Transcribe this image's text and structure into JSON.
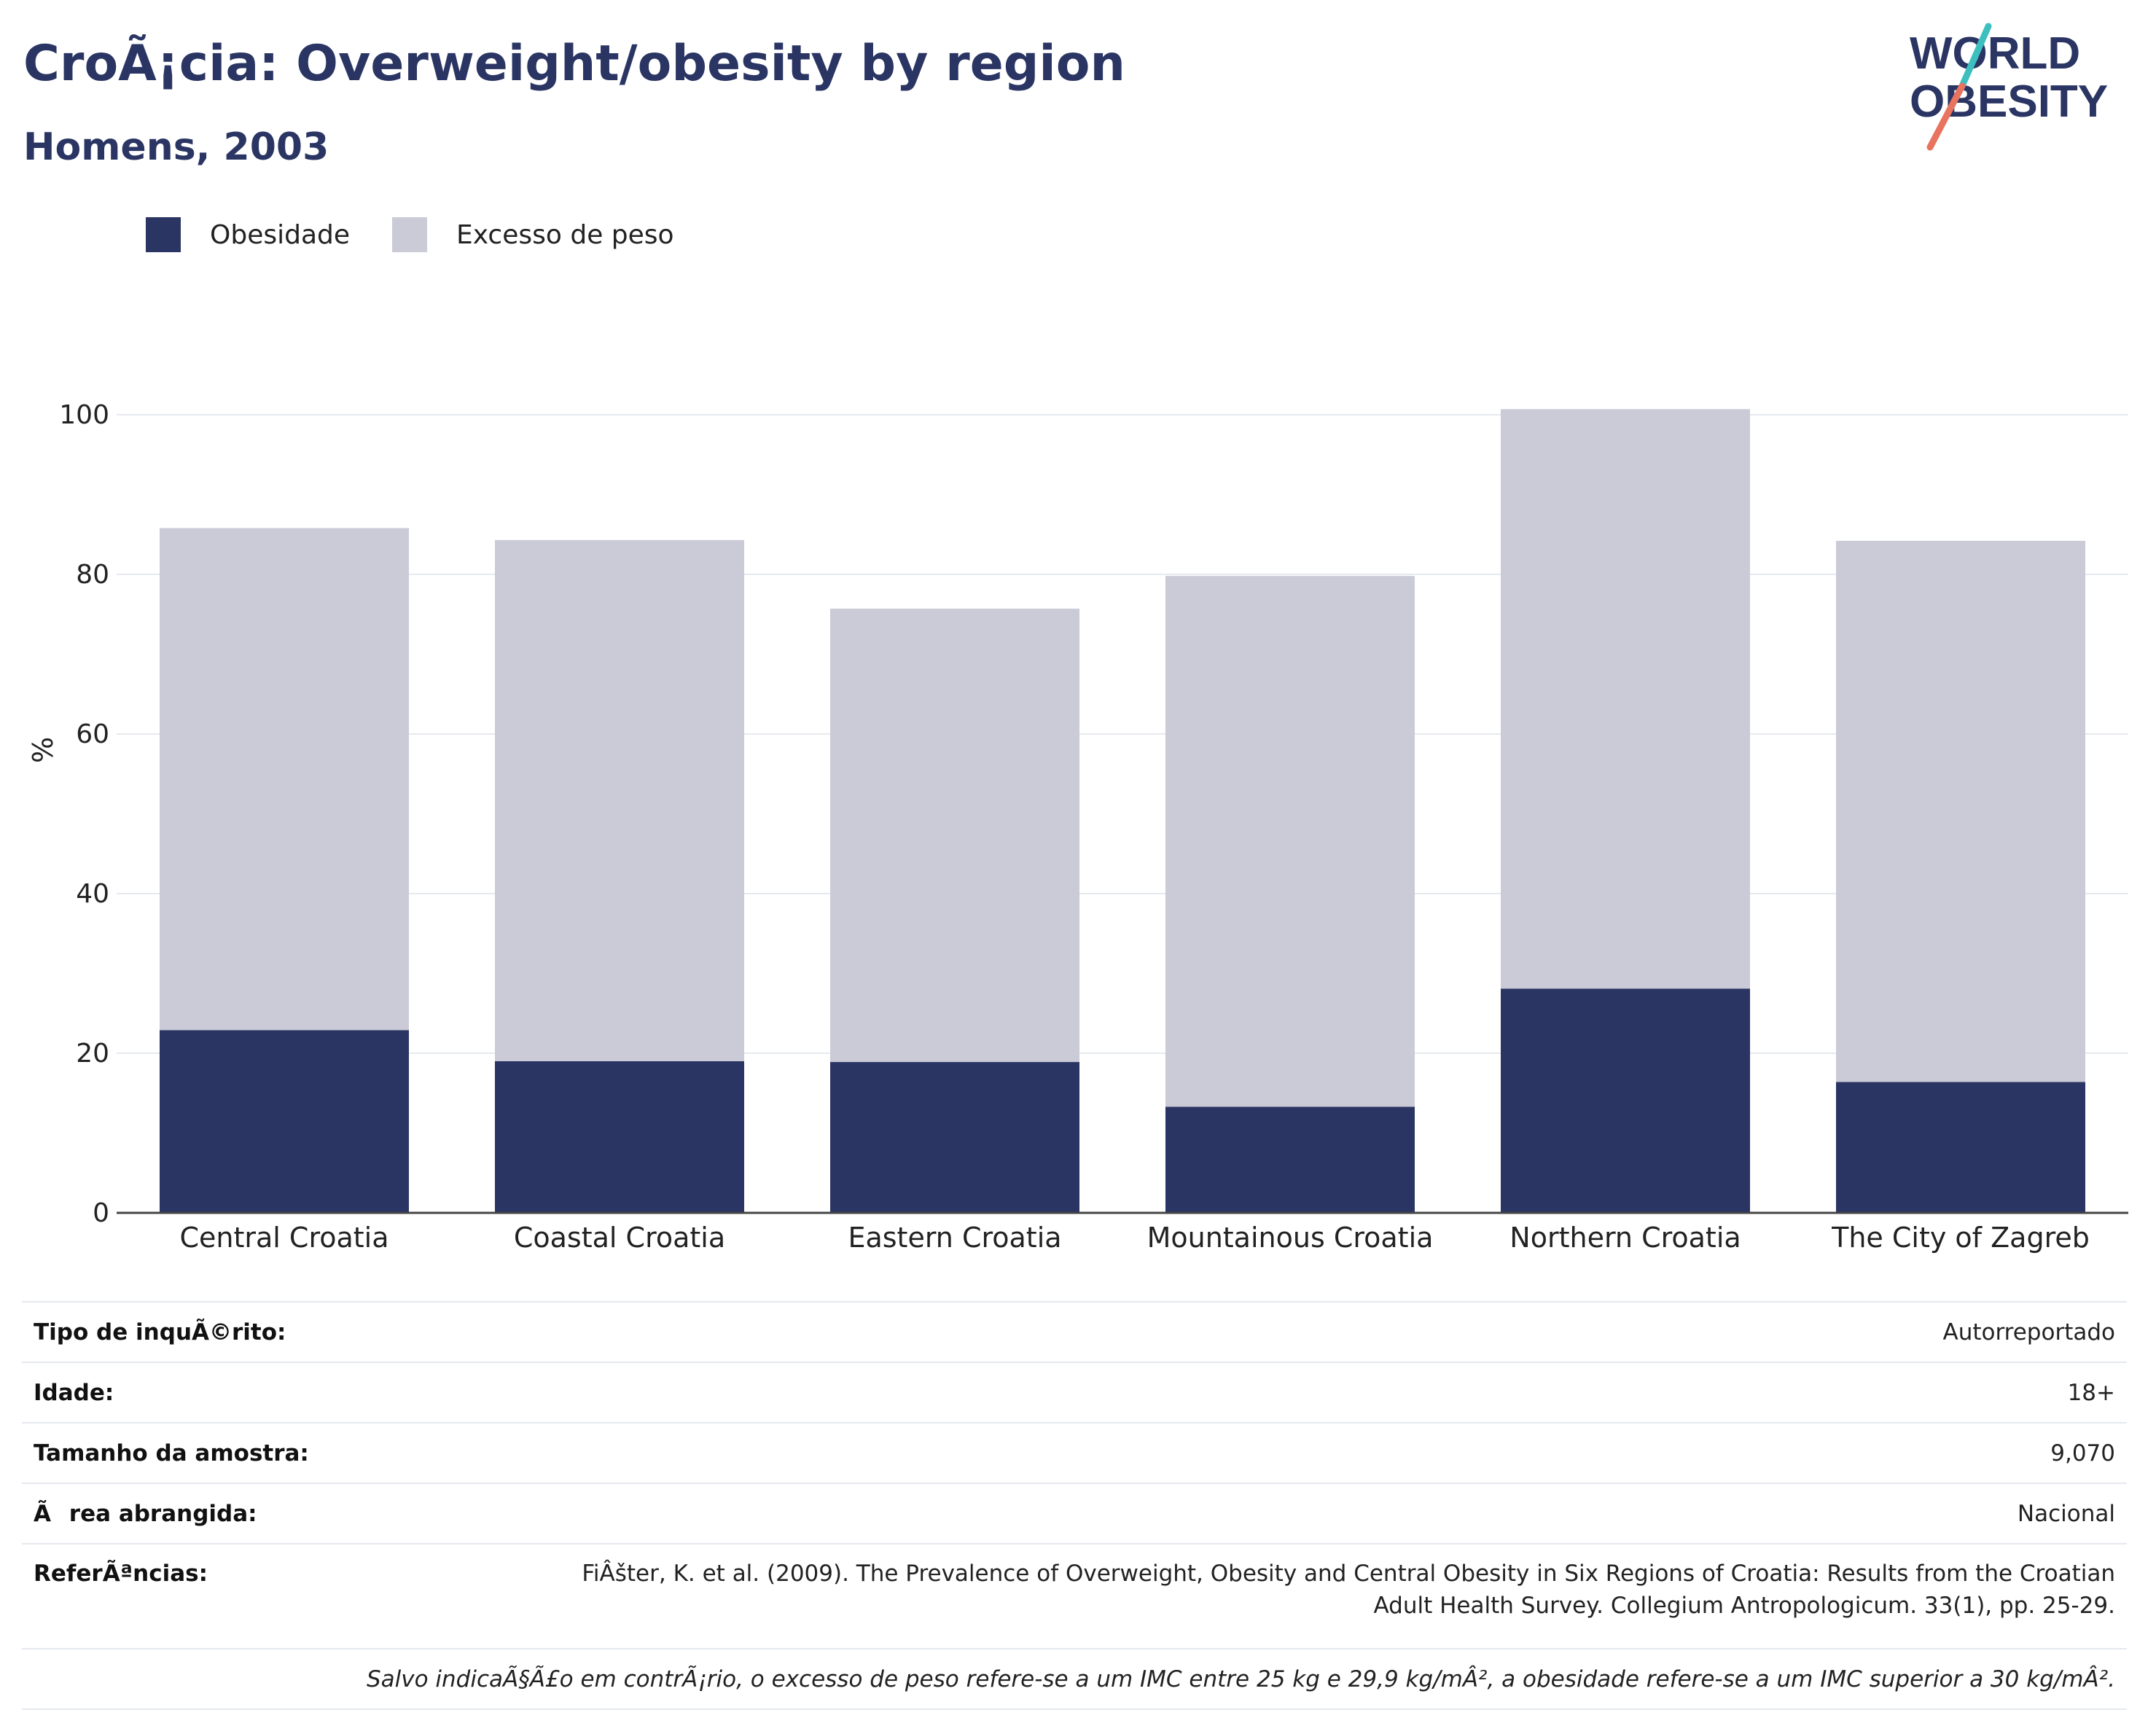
{
  "header": {
    "title": "CroÃ¡cia: Overweight/obesity by region",
    "subtitle": "Homens, 2003"
  },
  "logo": {
    "line1": "WORLD",
    "line2": "OBESITY"
  },
  "colors": {
    "obesity": "#2a3563",
    "overweight": "#cacbd7",
    "title": "#2a3563",
    "logo_slash_teal": "#3dbfbf",
    "logo_slash_coral": "#e8735f"
  },
  "chart_data": {
    "type": "bar",
    "stacked": true,
    "categories": [
      "Central Croatia",
      "Coastal Croatia",
      "Eastern Croatia",
      "Mountainous Croatia",
      "Northern Croatia",
      "The City of Zagreb"
    ],
    "series": [
      {
        "name": "Obesidade",
        "values": [
          22.9,
          19.0,
          18.9,
          13.3,
          28.1,
          16.4
        ]
      },
      {
        "name": "Excesso de peso",
        "values": [
          62.9,
          65.3,
          56.8,
          66.5,
          72.6,
          67.8
        ]
      }
    ],
    "ylabel": "%",
    "xlabel": "",
    "ylim": [
      0,
      105
    ],
    "yticks": [
      0,
      20,
      40,
      60,
      80,
      100
    ],
    "grid": true,
    "legend": "top-left"
  },
  "meta": {
    "rows": [
      {
        "label": "Tipo de inquÃ©rito:",
        "value": "Autorreportado"
      },
      {
        "label": "Idade:",
        "value": "18+"
      },
      {
        "label": "Tamanho da amostra:",
        "value": "9,070"
      },
      {
        "label": "Ãrea abrangida:",
        "value": "Nacional"
      }
    ],
    "references_label": "ReferÃªncias:",
    "references_line1": "FiÂšter, K. et al. (2009). The Prevalence of Overweight, Obesity and Central Obesity in Six Regions of Croatia: Results from the Croatian",
    "references_line2": "Adult Health Survey. Collegium Antropologicum. 33(1), pp. 25-29.",
    "note": "Salvo indicaÃ§Ã£o em contrÃ¡rio, o excesso de peso refere-se a um IMC entre 25 kg e 29,9 kg/mÂ², a obesidade refere-se a um IMC superior a 30 kg/mÂ²."
  }
}
